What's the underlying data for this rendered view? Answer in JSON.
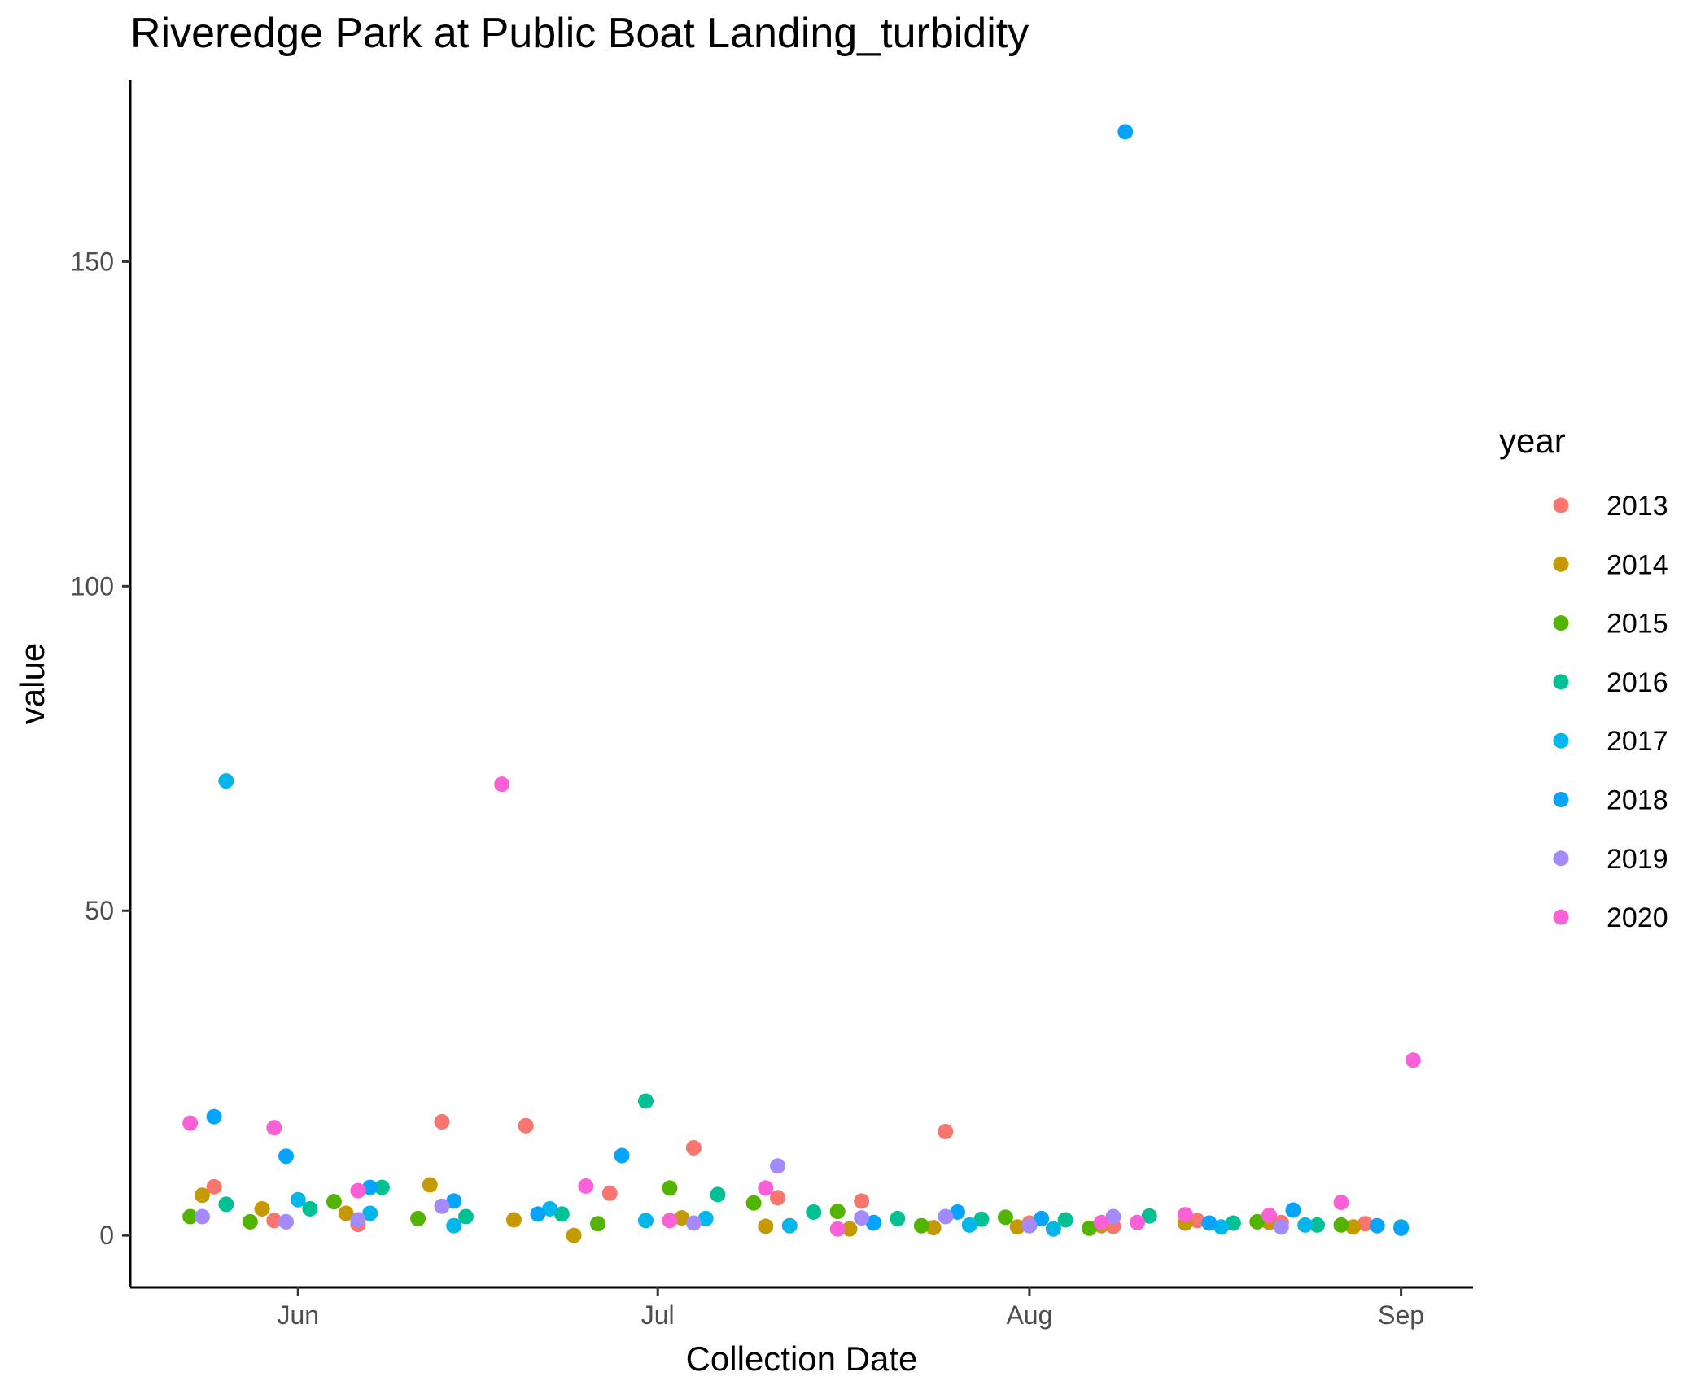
{
  "chart_data": {
    "type": "scatter",
    "title": "Riveredge Park at Public Boat Landing_turbidity",
    "xlabel": "Collection Date",
    "ylabel": "value",
    "x_axis": {
      "type": "date",
      "range": [
        "2000-05-18",
        "2000-09-07"
      ],
      "ticks": [
        {
          "date": "2000-06-01",
          "label": "Jun"
        },
        {
          "date": "2000-07-01",
          "label": "Jul"
        },
        {
          "date": "2000-08-01",
          "label": "Aug"
        },
        {
          "date": "2000-09-01",
          "label": "Sep"
        }
      ]
    },
    "y_axis": {
      "range": [
        -8,
        178
      ],
      "ticks": [
        0,
        50,
        100,
        150
      ]
    },
    "grid": false,
    "legend": {
      "title": "year",
      "position": "right"
    },
    "series": [
      {
        "name": "2013",
        "color": "#F8766D",
        "points": [
          {
            "x": "2000-05-25",
            "y": 7.5
          },
          {
            "x": "2000-05-30",
            "y": 2.3
          },
          {
            "x": "2000-06-06",
            "y": 1.7
          },
          {
            "x": "2000-06-13",
            "y": 17.5
          },
          {
            "x": "2000-06-20",
            "y": 16.9
          },
          {
            "x": "2000-06-27",
            "y": 6.5
          },
          {
            "x": "2000-07-04",
            "y": 13.5
          },
          {
            "x": "2000-07-11",
            "y": 5.8
          },
          {
            "x": "2000-07-18",
            "y": 5.3
          },
          {
            "x": "2000-07-25",
            "y": 16.0
          },
          {
            "x": "2000-08-01",
            "y": 1.9
          },
          {
            "x": "2000-08-08",
            "y": 1.4
          },
          {
            "x": "2000-08-15",
            "y": 2.3
          },
          {
            "x": "2000-08-22",
            "y": 2.0
          },
          {
            "x": "2000-08-29",
            "y": 1.8
          }
        ]
      },
      {
        "name": "2014",
        "color": "#C49A00",
        "points": [
          {
            "x": "2000-05-24",
            "y": 6.2
          },
          {
            "x": "2000-05-29",
            "y": 4.1
          },
          {
            "x": "2000-06-05",
            "y": 3.4
          },
          {
            "x": "2000-06-12",
            "y": 7.8
          },
          {
            "x": "2000-06-19",
            "y": 2.4
          },
          {
            "x": "2000-06-24",
            "y": 0.0
          },
          {
            "x": "2000-07-03",
            "y": 2.7
          },
          {
            "x": "2000-07-10",
            "y": 1.4
          },
          {
            "x": "2000-07-17",
            "y": 1.0
          },
          {
            "x": "2000-07-24",
            "y": 1.2
          },
          {
            "x": "2000-07-31",
            "y": 1.3
          },
          {
            "x": "2000-08-07",
            "y": 1.5
          },
          {
            "x": "2000-08-14",
            "y": 1.9
          },
          {
            "x": "2000-08-21",
            "y": 2.0
          },
          {
            "x": "2000-08-28",
            "y": 1.3
          }
        ]
      },
      {
        "name": "2015",
        "color": "#53B400",
        "points": [
          {
            "x": "2000-05-23",
            "y": 2.9
          },
          {
            "x": "2000-05-28",
            "y": 2.1
          },
          {
            "x": "2000-06-04",
            "y": 5.2
          },
          {
            "x": "2000-06-11",
            "y": 2.6
          },
          {
            "x": "2000-06-26",
            "y": 1.8
          },
          {
            "x": "2000-07-02",
            "y": 7.3
          },
          {
            "x": "2000-07-09",
            "y": 5.0
          },
          {
            "x": "2000-07-16",
            "y": 3.7
          },
          {
            "x": "2000-07-23",
            "y": 1.5
          },
          {
            "x": "2000-07-30",
            "y": 2.8
          },
          {
            "x": "2000-08-06",
            "y": 1.1
          },
          {
            "x": "2000-08-20",
            "y": 2.1
          },
          {
            "x": "2000-08-27",
            "y": 1.6
          }
        ]
      },
      {
        "name": "2016",
        "color": "#00C094",
        "points": [
          {
            "x": "2000-05-26",
            "y": 4.8
          },
          {
            "x": "2000-06-02",
            "y": 4.1
          },
          {
            "x": "2000-06-08",
            "y": 7.4
          },
          {
            "x": "2000-06-15",
            "y": 2.9
          },
          {
            "x": "2000-06-23",
            "y": 3.3
          },
          {
            "x": "2000-06-30",
            "y": 20.7
          },
          {
            "x": "2000-07-06",
            "y": 6.3
          },
          {
            "x": "2000-07-14",
            "y": 3.6
          },
          {
            "x": "2000-07-21",
            "y": 2.6
          },
          {
            "x": "2000-07-28",
            "y": 2.5
          },
          {
            "x": "2000-08-04",
            "y": 2.4
          },
          {
            "x": "2000-08-11",
            "y": 3.0
          },
          {
            "x": "2000-08-18",
            "y": 1.9
          },
          {
            "x": "2000-08-25",
            "y": 1.6
          },
          {
            "x": "2000-09-01",
            "y": 1.3
          }
        ]
      },
      {
        "name": "2017",
        "color": "#00B6EB",
        "points": [
          {
            "x": "2000-05-26",
            "y": 70.0
          },
          {
            "x": "2000-06-01",
            "y": 5.5
          },
          {
            "x": "2000-06-07",
            "y": 3.4
          },
          {
            "x": "2000-06-14",
            "y": 1.5
          },
          {
            "x": "2000-06-22",
            "y": 4.1
          },
          {
            "x": "2000-06-30",
            "y": 2.3
          },
          {
            "x": "2000-07-05",
            "y": 2.6
          },
          {
            "x": "2000-07-12",
            "y": 1.5
          },
          {
            "x": "2000-07-19",
            "y": 1.9
          },
          {
            "x": "2000-07-27",
            "y": 1.6
          },
          {
            "x": "2000-08-03",
            "y": 1.0
          },
          {
            "x": "2000-08-17",
            "y": 1.3
          },
          {
            "x": "2000-08-24",
            "y": 1.6
          }
        ]
      },
      {
        "name": "2018",
        "color": "#06A4FF",
        "points": [
          {
            "x": "2000-05-25",
            "y": 18.3
          },
          {
            "x": "2000-05-31",
            "y": 12.2
          },
          {
            "x": "2000-06-07",
            "y": 7.4
          },
          {
            "x": "2000-06-14",
            "y": 5.3
          },
          {
            "x": "2000-06-21",
            "y": 3.3
          },
          {
            "x": "2000-06-28",
            "y": 12.3
          },
          {
            "x": "2000-07-19",
            "y": 2.0
          },
          {
            "x": "2000-07-26",
            "y": 3.6
          },
          {
            "x": "2000-08-02",
            "y": 2.6
          },
          {
            "x": "2000-08-09",
            "y": 170.0
          },
          {
            "x": "2000-08-16",
            "y": 1.9
          },
          {
            "x": "2000-08-23",
            "y": 3.9
          },
          {
            "x": "2000-08-30",
            "y": 1.5
          },
          {
            "x": "2000-09-01",
            "y": 1.1
          }
        ]
      },
      {
        "name": "2019",
        "color": "#A58AFF",
        "points": [
          {
            "x": "2000-05-24",
            "y": 2.9
          },
          {
            "x": "2000-05-31",
            "y": 2.1
          },
          {
            "x": "2000-06-06",
            "y": 2.4
          },
          {
            "x": "2000-06-13",
            "y": 4.5
          },
          {
            "x": "2000-07-04",
            "y": 1.9
          },
          {
            "x": "2000-07-11",
            "y": 10.7
          },
          {
            "x": "2000-07-18",
            "y": 2.7
          },
          {
            "x": "2000-07-25",
            "y": 2.9
          },
          {
            "x": "2000-08-01",
            "y": 1.5
          },
          {
            "x": "2000-08-08",
            "y": 2.9
          },
          {
            "x": "2000-08-22",
            "y": 1.3
          }
        ]
      },
      {
        "name": "2020",
        "color": "#FB61D7",
        "points": [
          {
            "x": "2000-05-23",
            "y": 17.3
          },
          {
            "x": "2000-05-30",
            "y": 16.6
          },
          {
            "x": "2000-06-06",
            "y": 6.9
          },
          {
            "x": "2000-06-18",
            "y": 69.5
          },
          {
            "x": "2000-06-25",
            "y": 7.6
          },
          {
            "x": "2000-07-02",
            "y": 2.3
          },
          {
            "x": "2000-07-10",
            "y": 7.3
          },
          {
            "x": "2000-07-16",
            "y": 1.0
          },
          {
            "x": "2000-08-07",
            "y": 2.0
          },
          {
            "x": "2000-08-10",
            "y": 2.0
          },
          {
            "x": "2000-08-14",
            "y": 3.2
          },
          {
            "x": "2000-08-21",
            "y": 3.1
          },
          {
            "x": "2000-08-27",
            "y": 5.1
          },
          {
            "x": "2000-09-02",
            "y": 27.0
          }
        ]
      }
    ]
  }
}
